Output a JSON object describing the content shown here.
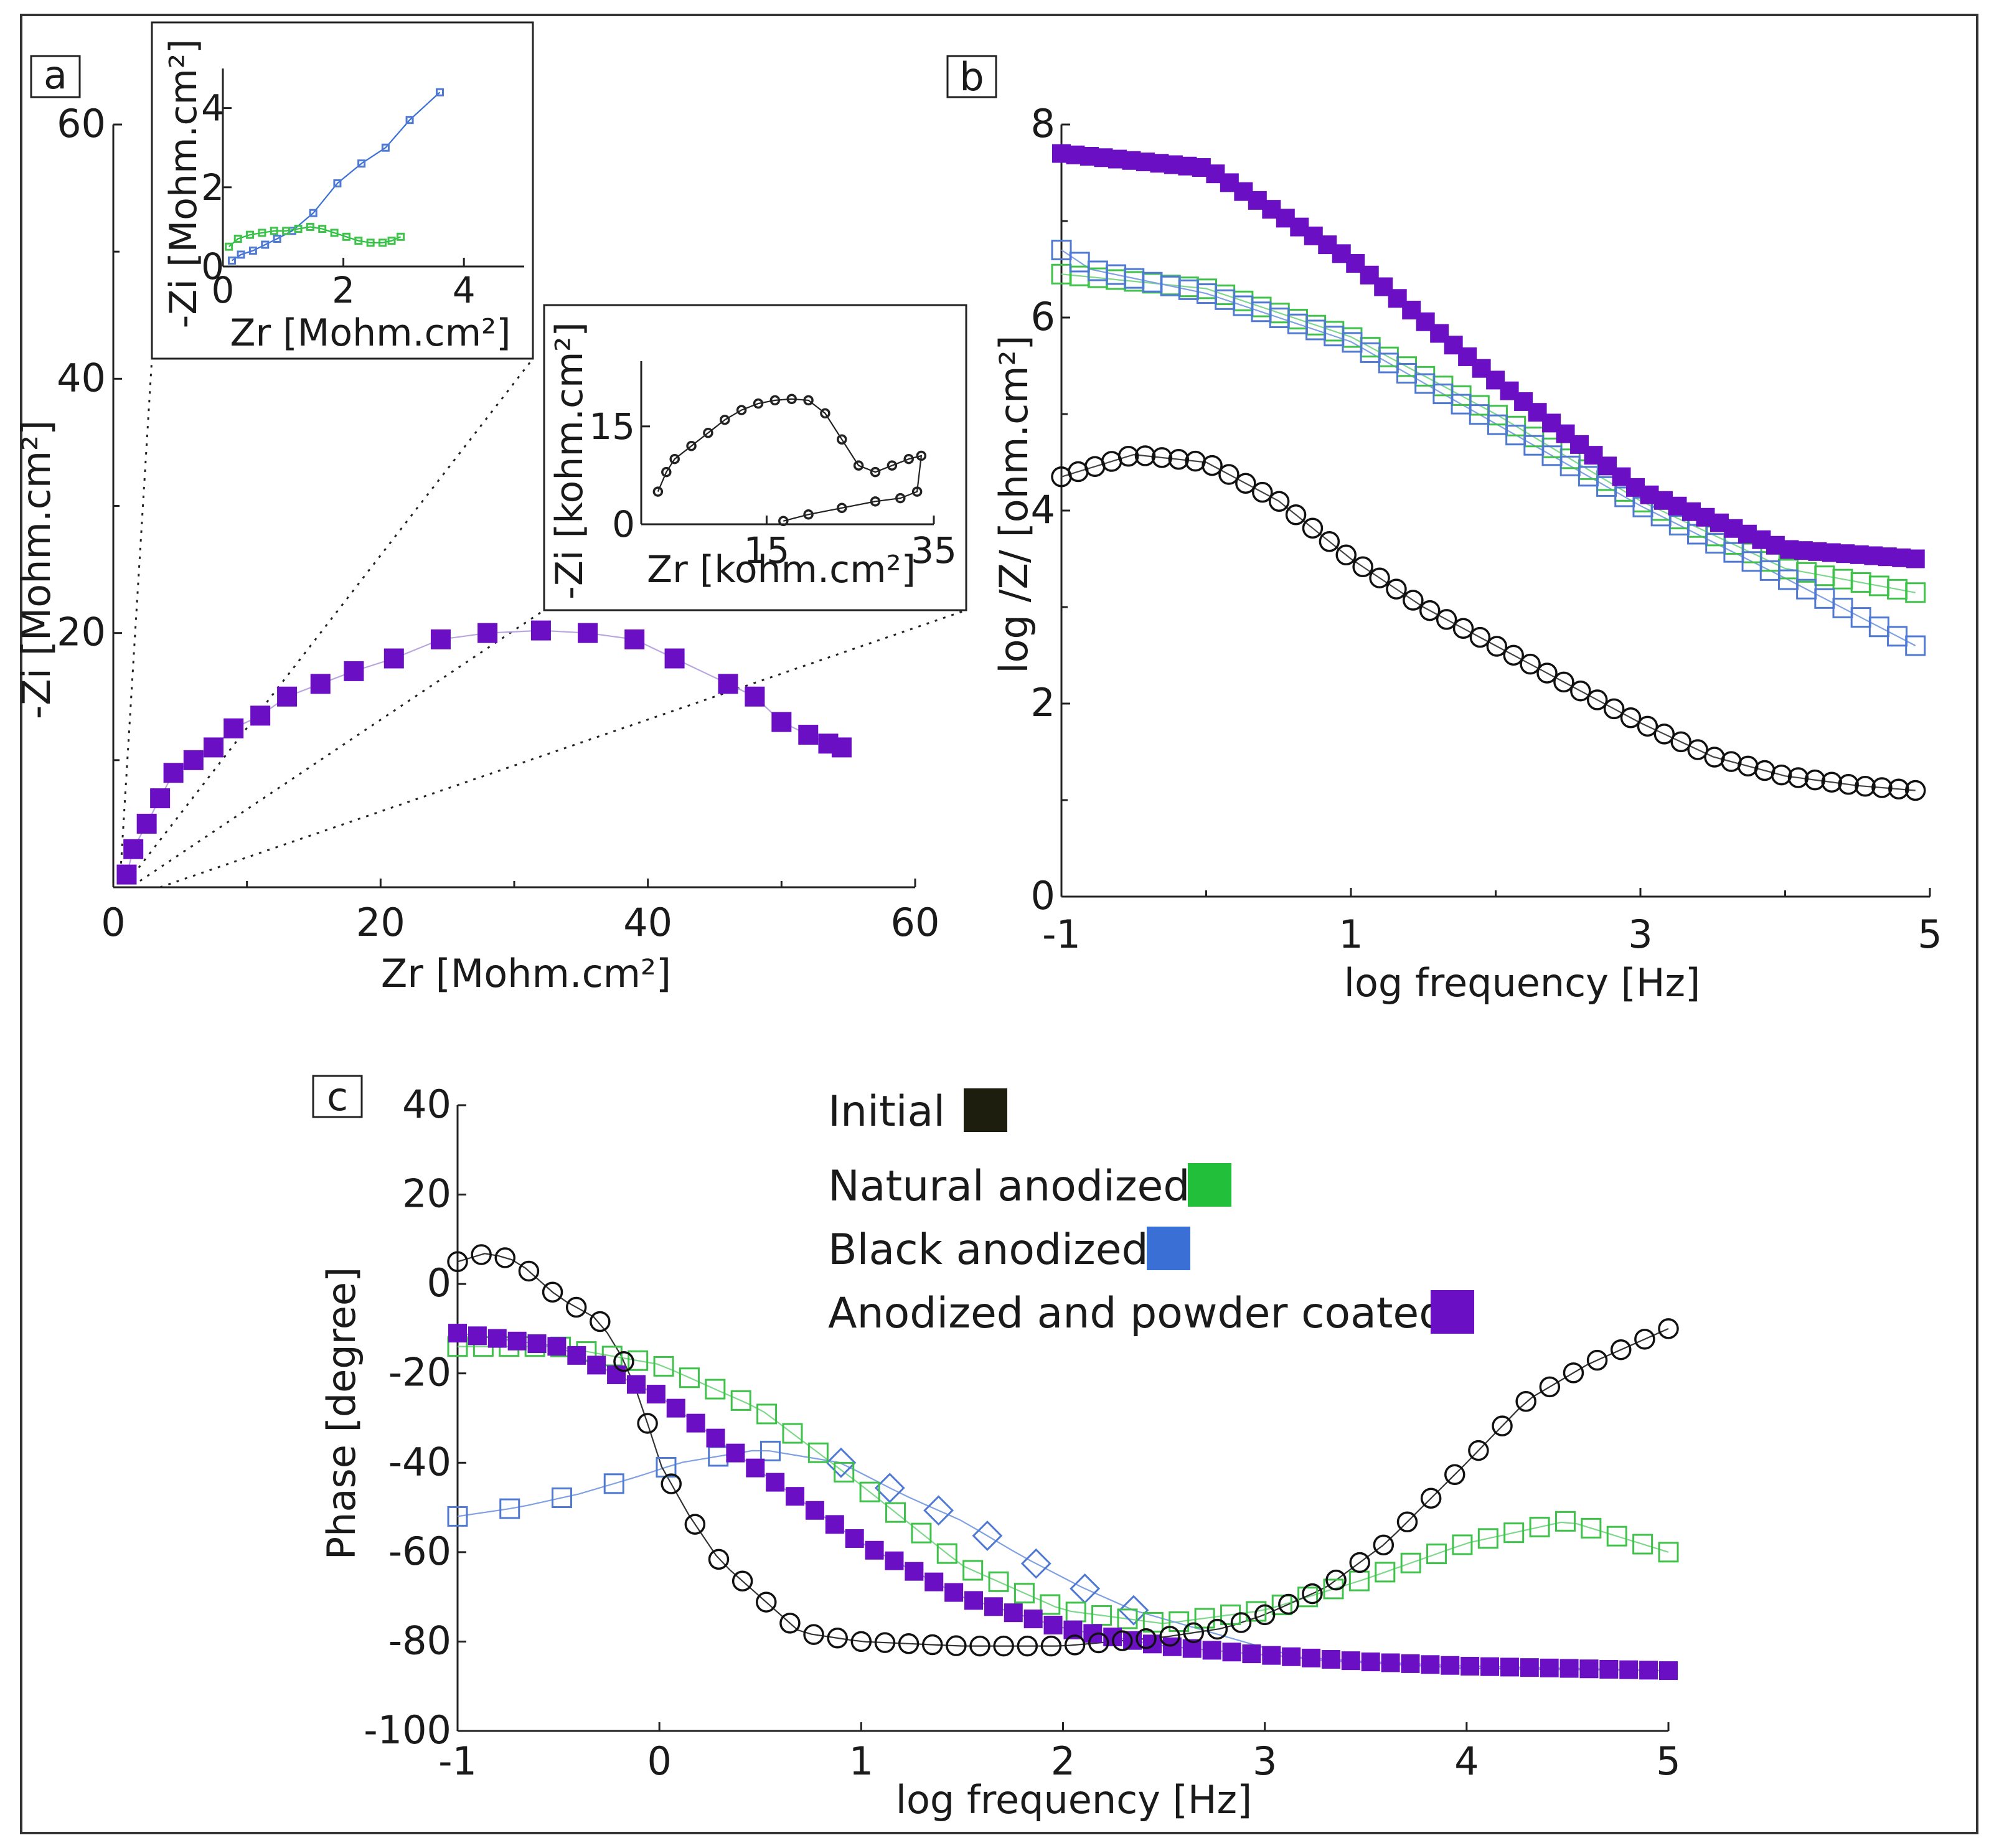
{
  "colors": {
    "initial": "#1e1e0e",
    "natural": "#22c03a",
    "black": "#3a6fd6",
    "coated": "#6a0fc4",
    "natural_marker": "#3ec24a",
    "black_marker": "#4f79d3"
  },
  "legend": {
    "items": [
      {
        "label": "Initial",
        "color": "#1e1e0e"
      },
      {
        "label": "Natural anodized",
        "color": "#22c03a"
      },
      {
        "label": "Black anodized",
        "color": "#3a6fd6"
      },
      {
        "label": "Anodized and powder coated",
        "color": "#6a0fc4"
      }
    ]
  },
  "chart_data": [
    {
      "panel": "a",
      "type": "scatter",
      "xlabel": "Zr [Mohm.cm²]",
      "ylabel": "-Zi [Mohm.cm²]",
      "xlim": [
        0,
        60
      ],
      "ylim": [
        0,
        60
      ],
      "xticks": [
        "0",
        "20",
        "40",
        "60"
      ],
      "yticks": [
        "20",
        "40",
        "60"
      ],
      "series": [
        {
          "name": "Anodized and powder coated",
          "x": [
            1.0,
            1.5,
            2.5,
            3.5,
            4.5,
            6,
            7.5,
            9,
            11,
            13,
            15.5,
            18,
            21,
            24.5,
            28,
            32,
            35.5,
            39,
            42,
            46,
            48,
            50,
            52,
            53.5,
            54.5
          ],
          "y": [
            1,
            3,
            5,
            7,
            9,
            10,
            11,
            12.5,
            13.5,
            15,
            16,
            17,
            18,
            19.5,
            20,
            20.2,
            20,
            19.5,
            18,
            16,
            15,
            13,
            12,
            11.3,
            11
          ]
        }
      ],
      "insets": [
        {
          "type": "scatter",
          "xlabel": "Zr [Mohm.cm²]",
          "ylabel": "-Zi [Mohm.cm²]",
          "xlim": [
            0,
            5
          ],
          "ylim": [
            0,
            5
          ],
          "xticks": [
            "0",
            "2",
            "4"
          ],
          "yticks": [
            "0",
            "2",
            "4"
          ],
          "series": [
            {
              "name": "Black anodized",
              "x": [
                0.15,
                0.3,
                0.5,
                0.7,
                0.9,
                1.15,
                1.5,
                1.9,
                2.3,
                2.7,
                3.1,
                3.6
              ],
              "y": [
                0.15,
                0.3,
                0.4,
                0.55,
                0.7,
                0.9,
                1.35,
                2.1,
                2.6,
                3.0,
                3.7,
                4.4
              ]
            },
            {
              "name": "Natural anodized",
              "x": [
                0.1,
                0.25,
                0.45,
                0.65,
                0.85,
                1.05,
                1.25,
                1.45,
                1.65,
                1.85,
                2.05,
                2.25,
                2.45,
                2.65,
                2.8,
                2.95
              ],
              "y": [
                0.5,
                0.7,
                0.8,
                0.85,
                0.9,
                0.9,
                0.95,
                1.0,
                0.95,
                0.85,
                0.75,
                0.65,
                0.6,
                0.6,
                0.65,
                0.75
              ]
            }
          ]
        },
        {
          "type": "scatter",
          "xlabel": "Zr [kohm.cm²]",
          "ylabel": "-Zi [kohm.cm²]",
          "xlim": [
            0,
            35
          ],
          "ylim": [
            0,
            25
          ],
          "xticks": [
            "15",
            "35"
          ],
          "yticks": [
            "0",
            "15"
          ],
          "series": [
            {
              "name": "Initial",
              "x": [
                2,
                3,
                4,
                6,
                8,
                10,
                12,
                14,
                16,
                18,
                20,
                22,
                24,
                26,
                28,
                30,
                32,
                33.5,
                33,
                31,
                28,
                24,
                20,
                17
              ],
              "y": [
                5,
                8,
                10,
                12,
                14,
                16,
                17.5,
                18.5,
                19,
                19.2,
                19,
                17,
                13,
                9,
                8,
                9,
                10,
                10.5,
                5,
                4,
                3.5,
                2.5,
                1.5,
                0.5
              ]
            }
          ]
        }
      ]
    },
    {
      "panel": "b",
      "type": "scatter",
      "xlabel": "log frequency [Hz]",
      "ylabel": "log /Z/ [ohm.cm²]",
      "xlim": [
        -1,
        5
      ],
      "ylim": [
        0,
        8
      ],
      "xticks": [
        "-1",
        "1",
        "3",
        "5"
      ],
      "yticks": [
        "0",
        "2",
        "4",
        "6",
        "8"
      ],
      "series": [
        {
          "name": "Anodized and powder coated",
          "x": [
            -1,
            0,
            1,
            2,
            3,
            4,
            4.9
          ],
          "y": [
            7.7,
            7.55,
            6.6,
            5.35,
            4.2,
            3.6,
            3.5
          ]
        },
        {
          "name": "Natural anodized",
          "x": [
            -1,
            0,
            1,
            2,
            3,
            4,
            4.9
          ],
          "y": [
            6.45,
            6.3,
            5.8,
            5.0,
            4.1,
            3.4,
            3.15
          ]
        },
        {
          "name": "Black anodized",
          "x": [
            -1,
            -0.8,
            0,
            1,
            2,
            3,
            4,
            4.9
          ],
          "y": [
            6.7,
            6.5,
            6.25,
            5.75,
            4.9,
            4.05,
            3.3,
            2.6
          ]
        },
        {
          "name": "Initial",
          "x": [
            -1,
            -0.5,
            0,
            0.5,
            1,
            1.5,
            2,
            2.5,
            3,
            3.5,
            4,
            4.5,
            4.9
          ],
          "y": [
            4.35,
            4.58,
            4.5,
            4.1,
            3.5,
            3.0,
            2.6,
            2.2,
            1.8,
            1.45,
            1.25,
            1.15,
            1.1
          ]
        }
      ]
    },
    {
      "panel": "c",
      "type": "scatter",
      "xlabel": "log frequency [Hz]",
      "ylabel": "Phase [degree]",
      "xlim": [
        -1,
        5
      ],
      "ylim": [
        -100,
        40
      ],
      "xticks": [
        "-1",
        "0",
        "1",
        "2",
        "3",
        "4",
        "5"
      ],
      "yticks": [
        "40",
        "20",
        "0",
        "-20",
        "-40",
        "-60",
        "-80",
        "-100"
      ],
      "series": [
        {
          "name": "Initial",
          "x": [
            -1,
            -0.85,
            -0.7,
            -0.5,
            -0.3,
            -0.2,
            -0.1,
            0,
            0.15,
            0.3,
            0.5,
            0.7,
            1,
            1.5,
            2,
            2.5,
            2.8,
            3,
            3.3,
            3.6,
            4,
            4.3,
            4.6,
            5
          ],
          "y": [
            5,
            7,
            5,
            -3,
            -8,
            -15,
            -25,
            -40,
            -52,
            -62,
            -70,
            -78,
            -80,
            -81,
            -81,
            -79,
            -77,
            -74,
            -68,
            -58,
            -40,
            -26,
            -18,
            -10
          ]
        },
        {
          "name": "Natural anodized",
          "x": [
            -1,
            -0.5,
            0,
            0.5,
            1,
            1.5,
            2,
            2.5,
            3,
            3.5,
            4,
            4.5,
            5
          ],
          "y": [
            -14,
            -14,
            -18,
            -28,
            -45,
            -63,
            -73,
            -76,
            -73,
            -66,
            -58,
            -53,
            -60
          ]
        },
        {
          "name": "Black anodized",
          "x": [
            -1,
            -0.7,
            -0.4,
            -0.1,
            0.1,
            0.5,
            0.9,
            1.2,
            1.5,
            1.8,
            2.1,
            2.35
          ],
          "y": [
            -52,
            -50,
            -47,
            -43,
            -40,
            -37,
            -40,
            -47,
            -53,
            -61,
            -68,
            -73
          ]
        },
        {
          "name": "Anodized and powder coated",
          "x": [
            -1,
            -0.5,
            0,
            0.5,
            1,
            1.5,
            2,
            2.5,
            3,
            3.5,
            4,
            4.5,
            5
          ],
          "y": [
            -11,
            -14,
            -25,
            -42,
            -58,
            -70,
            -77,
            -81,
            -83,
            -84.5,
            -85.5,
            -86,
            -86.5
          ]
        }
      ]
    }
  ]
}
